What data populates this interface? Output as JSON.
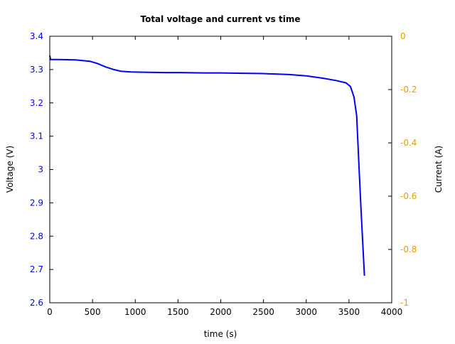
{
  "chart_data": {
    "type": "line",
    "title": "Total voltage and current vs time",
    "xlabel": "time (s)",
    "ylabel": "Voltage (V)",
    "y2label": "Current (A)",
    "xlim": [
      0,
      4000
    ],
    "ylim": [
      2.6,
      3.4
    ],
    "y2lim": [
      -1,
      0
    ],
    "grid": false,
    "xticks": [
      "0",
      "500",
      "1000",
      "1500",
      "2000",
      "2500",
      "3000",
      "3500",
      "4000"
    ],
    "yticks": [
      "2.6",
      "2.7",
      "2.8",
      "2.9",
      "3",
      "3.1",
      "3.2",
      "3.3",
      "3.4"
    ],
    "y2ticks": [
      "-1",
      "-0.8",
      "-0.6",
      "-0.4",
      "-0.2",
      "0"
    ],
    "colors": {
      "voltage": "#0000ff",
      "current_axis": "#e8a000",
      "axes": "#000000"
    },
    "series": [
      {
        "axis": "left",
        "color": "#0000ff",
        "x": [
          0,
          10,
          100,
          300,
          470,
          560,
          650,
          750,
          832,
          950,
          1100,
          1356,
          1500,
          1800,
          2000,
          2200,
          2500,
          2800,
          3000,
          3200,
          3350,
          3465,
          3518,
          3559,
          3590,
          3617,
          3643,
          3681
        ],
        "y": [
          3.342,
          3.33,
          3.33,
          3.329,
          3.325,
          3.318,
          3.308,
          3.3,
          3.295,
          3.293,
          3.292,
          3.291,
          3.291,
          3.29,
          3.29,
          3.289,
          3.288,
          3.285,
          3.281,
          3.274,
          3.267,
          3.26,
          3.249,
          3.217,
          3.161,
          3.011,
          2.868,
          2.681
        ]
      }
    ]
  }
}
